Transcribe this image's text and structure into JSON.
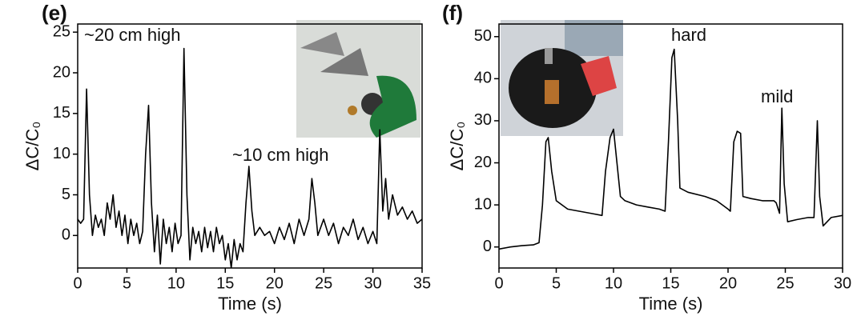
{
  "chart_data": [
    {
      "type": "line",
      "panel_label": "(e)",
      "xlabel": "Time (s)",
      "ylabel": "ΔC/C₀",
      "annotations": [
        "~20 cm high",
        "~10 cm high"
      ],
      "xlim": [
        0,
        35
      ],
      "ylim": [
        -4,
        26
      ],
      "xticks": [
        0,
        5,
        10,
        15,
        20,
        25,
        30,
        35
      ],
      "yticks": [
        0,
        5,
        10,
        15,
        20,
        25
      ],
      "x": [
        0,
        0.3,
        0.6,
        0.9,
        1.2,
        1.5,
        1.8,
        2.1,
        2.4,
        2.7,
        3,
        3.3,
        3.6,
        3.9,
        4.2,
        4.5,
        4.8,
        5.1,
        5.4,
        5.7,
        6,
        6.3,
        6.6,
        6.9,
        7.2,
        7.5,
        7.8,
        8.1,
        8.4,
        8.7,
        9,
        9.3,
        9.6,
        9.9,
        10.2,
        10.5,
        10.8,
        11.1,
        11.4,
        11.7,
        12,
        12.3,
        12.6,
        12.9,
        13.2,
        13.5,
        13.8,
        14.1,
        14.4,
        14.7,
        15,
        15.3,
        15.6,
        15.9,
        16.2,
        16.5,
        16.8,
        17.1,
        17.4,
        17.7,
        18,
        18.5,
        19,
        19.5,
        20,
        20.5,
        21,
        21.5,
        22,
        22.5,
        23,
        23.5,
        23.8,
        24.1,
        24.4,
        25,
        25.5,
        26,
        26.5,
        27,
        27.5,
        28,
        28.5,
        29,
        29.5,
        30,
        30.4,
        30.7,
        31,
        31.3,
        31.6,
        32,
        32.5,
        33,
        33.5,
        34,
        34.5,
        35
      ],
      "series": [
        {
          "color": "#000000",
          "values": [
            2,
            1.5,
            2,
            18,
            5,
            0,
            2.5,
            1,
            2,
            0,
            4,
            2,
            5,
            1,
            3,
            0,
            2.5,
            -1,
            2,
            0,
            1.5,
            -1,
            0.5,
            10,
            16,
            4,
            -2,
            2.5,
            -3.5,
            2,
            -1,
            1,
            -2,
            1.5,
            -1,
            0,
            23,
            5,
            -3,
            1,
            -1,
            0.5,
            -2,
            1,
            -1.5,
            0.5,
            -2,
            1,
            -1,
            0,
            -3,
            -1,
            -4,
            -0.5,
            -3,
            -1,
            -2,
            4,
            8.5,
            3,
            0,
            1,
            0,
            0.5,
            -1,
            1,
            -0.5,
            1.5,
            -1,
            2,
            0,
            2,
            7,
            4,
            0,
            2,
            0,
            1.5,
            -1,
            1,
            0,
            2,
            -0.5,
            1,
            -1,
            0.5,
            -1,
            13,
            3,
            7,
            2,
            5,
            2.5,
            3.5,
            2,
            3,
            1.5,
            2
          ]
        }
      ]
    },
    {
      "type": "line",
      "panel_label": "(f)",
      "xlabel": "Time (s)",
      "ylabel": "ΔC/C₀",
      "annotations": [
        "hard",
        "mild"
      ],
      "xlim": [
        0,
        30
      ],
      "ylim": [
        -5,
        53
      ],
      "xticks": [
        0,
        5,
        10,
        15,
        20,
        25,
        30
      ],
      "yticks": [
        0,
        10,
        20,
        30,
        40,
        50
      ],
      "x": [
        0,
        1,
        2,
        3,
        3.5,
        3.8,
        4.1,
        4.3,
        4.6,
        5,
        6,
        7,
        8,
        9,
        9.3,
        9.7,
        10,
        10.3,
        10.6,
        11,
        12,
        13,
        14,
        14.5,
        14.8,
        15.1,
        15.3,
        15.6,
        15.8,
        16.5,
        18,
        19,
        19.5,
        20,
        20.2,
        20.5,
        20.8,
        21.1,
        21.3,
        22,
        23,
        24,
        24.2,
        24.5,
        24.7,
        24.9,
        25.2,
        26,
        27,
        27.5,
        27.8,
        28,
        28.3,
        29,
        30
      ],
      "series": [
        {
          "color": "#000000",
          "values": [
            -0.5,
            0,
            0.3,
            0.5,
            1,
            10,
            25,
            26,
            18,
            11,
            9,
            8.5,
            8,
            7.5,
            18,
            26,
            28,
            20,
            12,
            11,
            10,
            9.5,
            9,
            8.5,
            25,
            45,
            47,
            30,
            14,
            13,
            12,
            11,
            10,
            9,
            8.5,
            25,
            27.5,
            27,
            12,
            11.5,
            11,
            11,
            10.5,
            8,
            33,
            15,
            6,
            6.5,
            7,
            7,
            30,
            12,
            5,
            7,
            7.5
          ]
        }
      ]
    }
  ]
}
